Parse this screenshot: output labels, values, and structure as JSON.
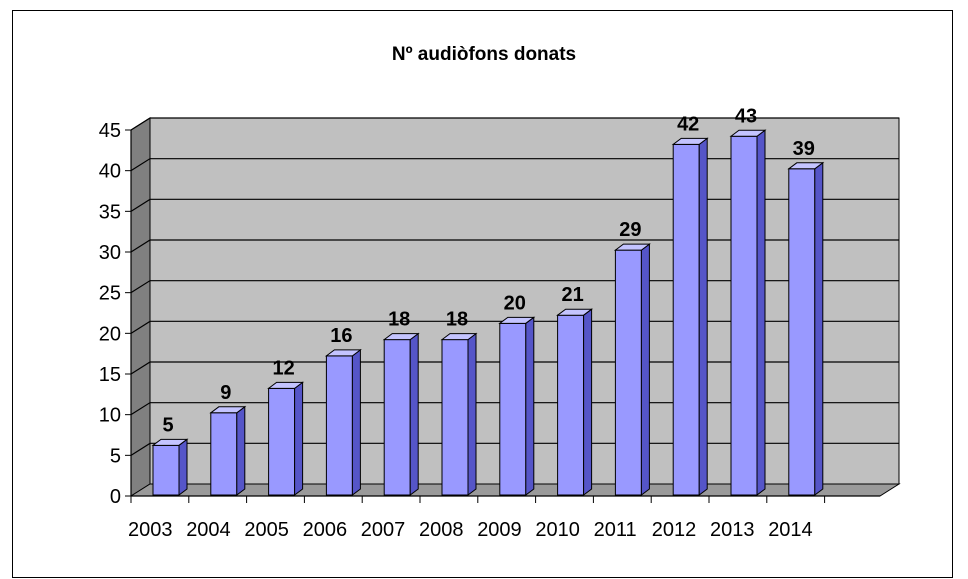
{
  "chart_data": {
    "type": "bar",
    "title": "Nº audiòfons donats",
    "categories": [
      "2003",
      "2004",
      "2005",
      "2006",
      "2007",
      "2008",
      "2009",
      "2010",
      "2011",
      "2012",
      "2013",
      "2014"
    ],
    "values": [
      5,
      9,
      12,
      16,
      18,
      18,
      20,
      21,
      29,
      42,
      43,
      39
    ],
    "ylim": [
      0,
      45
    ],
    "yticks": [
      0,
      5,
      10,
      15,
      20,
      25,
      30,
      35,
      40,
      45
    ],
    "xlabel": "",
    "ylabel": "",
    "grid": true,
    "legend": "none",
    "colors": {
      "bar_front": "#9999ff",
      "bar_side": "#5555c8",
      "bar_top": "#c4c4ff",
      "plot_back": "#c0c0c0",
      "plot_wall": "#808080",
      "plot_floor": "#9a9a9a"
    }
  }
}
